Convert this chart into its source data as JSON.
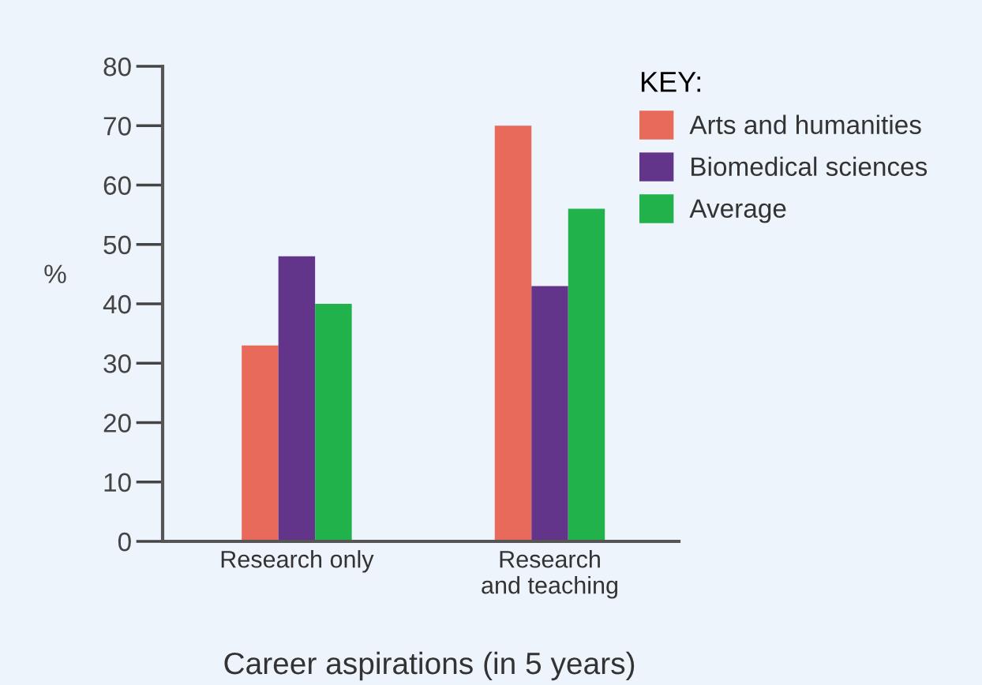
{
  "chart_data": {
    "type": "bar",
    "categories": [
      "Research only",
      "Research\nand teaching"
    ],
    "series": [
      {
        "name": "Arts and humanities",
        "color": "#e86a5a",
        "values": [
          33,
          70
        ]
      },
      {
        "name": "Biomedical sciences",
        "color": "#62358a",
        "values": [
          48,
          43
        ]
      },
      {
        "name": "Average",
        "color": "#22b24c",
        "values": [
          40,
          56
        ]
      }
    ],
    "ylabel": "%",
    "xlabel": "Career aspirations (in 5 years)",
    "legend_title": "KEY:",
    "ylim": [
      0,
      80
    ],
    "yticks": [
      0,
      10,
      20,
      30,
      40,
      50,
      60,
      70,
      80
    ],
    "grid": false,
    "legend": "top right"
  }
}
